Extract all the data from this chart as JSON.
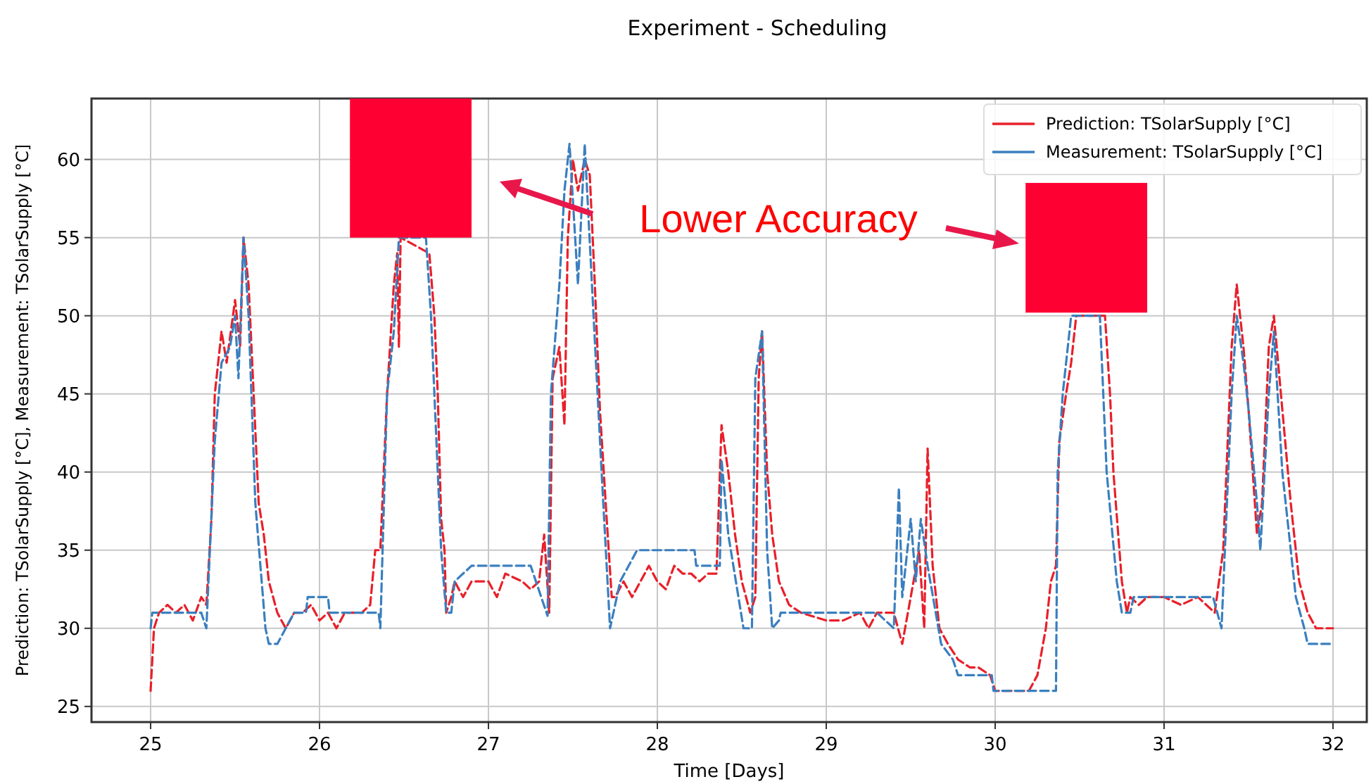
{
  "chart_data": {
    "type": "line",
    "title": "Experiment - Scheduling",
    "xlabel": "Time [Days]",
    "ylabel": "Prediction: TSolarSupply [°C], Measurement: TSolarSupply [°C]",
    "annotations": [
      "Lower Accuracy"
    ],
    "xlim": [
      24.65,
      32.2
    ],
    "ylim": [
      24,
      63.9
    ],
    "xticks": [
      25,
      26,
      27,
      28,
      29,
      30,
      31,
      32
    ],
    "yticks": [
      25,
      30,
      35,
      40,
      45,
      50,
      55,
      60
    ],
    "grid": true,
    "legend": "top right",
    "line_style": "dashed",
    "series": [
      {
        "name": "Prediction: TSolarSupply [°C]",
        "color": "#e8202a",
        "x": [
          25.0,
          25.02,
          25.05,
          25.1,
          25.15,
          25.2,
          25.25,
          25.3,
          25.33,
          25.36,
          25.38,
          25.42,
          25.45,
          25.5,
          25.53,
          25.55,
          25.58,
          25.61,
          25.64,
          25.67,
          25.7,
          25.75,
          25.8,
          25.85,
          25.9,
          25.95,
          26.0,
          26.05,
          26.1,
          26.15,
          26.25,
          26.3,
          26.33,
          26.36,
          26.4,
          26.44,
          26.46,
          26.47,
          26.48,
          26.65,
          26.68,
          26.7,
          26.72,
          26.74,
          26.75,
          26.78,
          26.8,
          26.85,
          26.9,
          27.0,
          27.05,
          27.1,
          27.2,
          27.25,
          27.3,
          27.33,
          27.36,
          27.38,
          27.42,
          27.45,
          27.47,
          27.5,
          27.53,
          27.57,
          27.6,
          27.63,
          27.66,
          27.7,
          27.73,
          27.75,
          27.8,
          27.85,
          27.9,
          27.95,
          28.0,
          28.05,
          28.1,
          28.15,
          28.2,
          28.25,
          28.3,
          28.35,
          28.38,
          28.42,
          28.46,
          28.5,
          28.55,
          28.58,
          28.6,
          28.62,
          28.65,
          28.68,
          28.72,
          28.78,
          28.85,
          29.0,
          29.1,
          29.2,
          29.25,
          29.3,
          29.4,
          29.45,
          29.5,
          29.55,
          29.58,
          29.6,
          29.63,
          29.67,
          29.72,
          29.78,
          29.85,
          29.9,
          29.97,
          30.0,
          30.1,
          30.2,
          30.25,
          30.3,
          30.33,
          30.36,
          30.38,
          30.42,
          30.45,
          30.48,
          30.65,
          30.68,
          30.7,
          30.75,
          30.78,
          30.8,
          30.85,
          30.9,
          31.0,
          31.1,
          31.2,
          31.3,
          31.35,
          31.4,
          31.43,
          31.47,
          31.5,
          31.55,
          31.58,
          31.62,
          31.65,
          31.7,
          31.75,
          31.8,
          31.85,
          31.9,
          32.0
        ],
        "values": [
          26,
          30,
          31,
          31.5,
          31,
          31.5,
          30.5,
          32,
          31.5,
          37,
          45,
          49,
          47,
          51,
          48,
          55,
          52,
          45,
          38,
          36,
          33,
          31,
          30,
          31,
          31,
          31.5,
          30.5,
          31,
          30,
          31,
          31,
          31.5,
          35,
          35,
          45,
          52,
          54,
          48,
          55,
          54,
          50,
          45,
          37,
          35,
          31,
          32,
          33,
          32,
          33,
          33,
          32,
          33.5,
          33,
          32.5,
          33,
          36,
          31,
          46,
          48,
          43,
          55,
          60,
          58,
          60,
          59,
          52,
          44,
          37,
          32,
          32,
          33,
          32,
          33,
          34,
          33,
          32.5,
          34,
          33.5,
          33.5,
          33,
          33.5,
          33.5,
          43,
          40,
          36,
          33,
          31,
          32,
          46,
          49,
          40,
          36,
          33,
          31.5,
          31,
          30.5,
          30.5,
          31,
          30,
          31,
          31,
          29,
          32,
          35,
          30,
          41.5,
          34,
          30,
          29,
          28,
          27.5,
          27.5,
          27,
          26,
          26,
          26,
          27,
          30,
          33,
          34,
          42,
          45,
          47,
          50,
          50,
          45,
          40,
          33,
          31,
          32,
          31.5,
          32,
          32,
          31.5,
          32,
          31,
          35,
          48,
          52,
          48,
          44,
          36,
          38,
          48,
          50,
          44,
          38,
          33,
          31,
          30,
          30
        ]
      },
      {
        "name": "Measurement: TSolarSupply [°C]",
        "color": "#3a7fbf",
        "x": [
          25.0,
          25.01,
          25.3,
          25.33,
          25.38,
          25.42,
          25.47,
          25.5,
          25.52,
          25.55,
          25.58,
          25.62,
          25.68,
          25.7,
          25.75,
          25.8,
          25.85,
          25.92,
          25.93,
          26.05,
          26.06,
          26.35,
          26.36,
          26.4,
          26.44,
          26.47,
          26.63,
          26.66,
          26.7,
          26.72,
          26.75,
          26.78,
          26.8,
          26.9,
          27.25,
          27.35,
          27.37,
          27.42,
          27.45,
          27.48,
          27.53,
          27.57,
          27.67,
          27.72,
          27.78,
          27.88,
          28.22,
          28.23,
          28.37,
          28.38,
          28.42,
          28.51,
          28.56,
          28.58,
          28.62,
          28.65,
          28.68,
          28.72,
          28.73,
          29.3,
          29.4,
          29.43,
          29.45,
          29.5,
          29.53,
          29.56,
          29.6,
          29.68,
          29.75,
          29.78,
          29.98,
          29.99,
          30.36,
          30.37,
          30.4,
          30.45,
          30.62,
          30.66,
          30.72,
          30.75,
          30.8,
          30.82,
          31.29,
          31.34,
          31.36,
          31.4,
          31.43,
          31.47,
          31.5,
          31.55,
          31.57,
          31.62,
          31.65,
          31.7,
          31.78,
          31.83,
          31.85,
          32.0
        ],
        "values": [
          30,
          31,
          31,
          30,
          42,
          47,
          48,
          50,
          46,
          55,
          50,
          38,
          30,
          29,
          29,
          30,
          31,
          31,
          32,
          32,
          31,
          31,
          30,
          45,
          49,
          55,
          55,
          50,
          40,
          35,
          31,
          31,
          33,
          34,
          34,
          30.8,
          45,
          52,
          58,
          61,
          52,
          61,
          40,
          30,
          33,
          35,
          35,
          34,
          34,
          40.8,
          36,
          30,
          30,
          46,
          49,
          35,
          30,
          30.5,
          31,
          31,
          30,
          39,
          32,
          37,
          33,
          37,
          34,
          29,
          28,
          27,
          27,
          26,
          26,
          40,
          45,
          50,
          50,
          40,
          33,
          31,
          31,
          32,
          32,
          30,
          35,
          45,
          50,
          47,
          44,
          38,
          35,
          45,
          49,
          40,
          32,
          30,
          29,
          29
        ]
      }
    ]
  }
}
